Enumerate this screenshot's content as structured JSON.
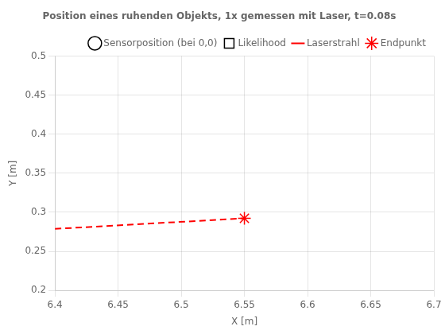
{
  "chart_data": {
    "type": "line",
    "title": "Position eines ruhenden Objekts, 1x gemessen mit Laser, t=0.08s",
    "x_label": "X [m]",
    "y_label": "Y [m]",
    "xlim": [
      6.4,
      6.7
    ],
    "ylim": [
      0.2,
      0.5
    ],
    "xticks": [
      6.4,
      6.45,
      6.5,
      6.55,
      6.6,
      6.65,
      6.7
    ],
    "yticks": [
      0.2,
      0.25,
      0.3,
      0.35,
      0.4,
      0.45,
      0.5
    ],
    "grid": true,
    "legend": "upper right",
    "series": [
      {
        "name": "Sensorposition (bei 0,0)",
        "type": "scatter",
        "marker": "circle",
        "color": "#000000",
        "x": [],
        "values": []
      },
      {
        "name": "Likelihood",
        "type": "scatter",
        "marker": "square",
        "color": "#000000",
        "x": [],
        "values": []
      },
      {
        "name": "Laserstrahl",
        "type": "line",
        "line_style": "dashed",
        "color": "#FF0000",
        "x": [
          6.4,
          6.55
        ],
        "values": [
          0.2787664,
          0.2923
        ]
      },
      {
        "name": "Endpunkt",
        "type": "scatter",
        "marker": "star",
        "color": "#FF0000",
        "x": [
          6.55
        ],
        "values": [
          0.2923
        ]
      }
    ]
  }
}
